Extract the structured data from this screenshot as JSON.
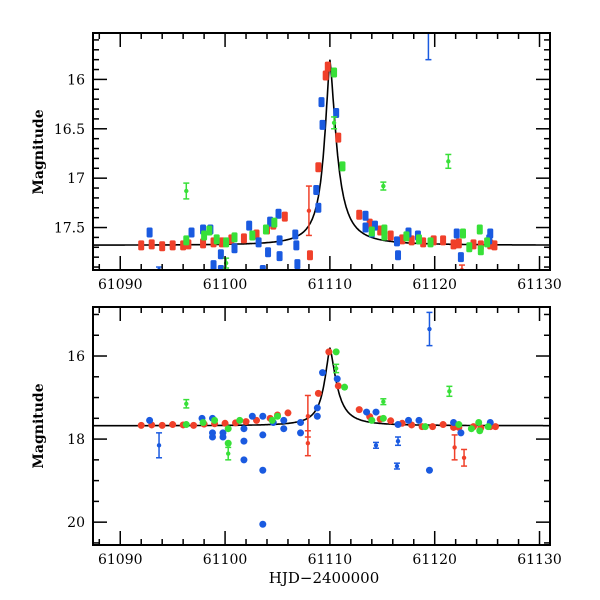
{
  "chart_data": [
    {
      "type": "scatter",
      "panel": "top",
      "title": "",
      "xlabel": "",
      "ylabel": "Magnitude",
      "xlim": [
        61087.4,
        61131.0
      ],
      "ylim": [
        17.93,
        15.53
      ],
      "y_inverted": true,
      "xticks": [
        61090,
        61100,
        61110,
        61120,
        61130
      ],
      "xtick_labels": [
        "61090",
        "61100",
        "61110",
        "61120",
        "61130"
      ],
      "yticks": [
        16,
        16.5,
        17,
        17.5
      ],
      "ytick_labels": [
        "16",
        "16.5",
        "17",
        "17.5"
      ],
      "grid": false,
      "model": {
        "name": "model",
        "color": "#000000",
        "baseline": 17.68,
        "peak_mag": 15.8,
        "peak_time": 61110.0,
        "rise_width": 1.1,
        "decay_width": 1.3
      },
      "series": [
        {
          "name": "red",
          "color": "#f0402a",
          "points": [
            {
              "x": 61092.0,
              "y": 17.68
            },
            {
              "x": 61093.0,
              "y": 17.67
            },
            {
              "x": 61094.0,
              "y": 17.69
            },
            {
              "x": 61095.0,
              "y": 17.68
            },
            {
              "x": 61096.0,
              "y": 17.68
            },
            {
              "x": 61096.5,
              "y": 17.67
            },
            {
              "x": 61097.9,
              "y": 17.66
            },
            {
              "x": 61098.9,
              "y": 17.65
            },
            {
              "x": 61099.7,
              "y": 17.65
            },
            {
              "x": 61100.6,
              "y": 17.62
            },
            {
              "x": 61101.8,
              "y": 17.61
            },
            {
              "x": 61103.0,
              "y": 17.57
            },
            {
              "x": 61104.0,
              "y": 17.52
            },
            {
              "x": 61104.6,
              "y": 17.47
            },
            {
              "x": 61105.7,
              "y": 17.39
            },
            {
              "x": 61108.0,
              "y": 17.33,
              "err": 0.25
            },
            {
              "x": 61108.1,
              "y": 17.78
            },
            {
              "x": 61108.9,
              "y": 16.89
            },
            {
              "x": 61109.6,
              "y": 15.96
            },
            {
              "x": 61109.8,
              "y": 15.87
            },
            {
              "x": 61110.8,
              "y": 16.59
            },
            {
              "x": 61112.8,
              "y": 17.37
            },
            {
              "x": 61113.8,
              "y": 17.46
            },
            {
              "x": 61114.8,
              "y": 17.53
            },
            {
              "x": 61115.8,
              "y": 17.58
            },
            {
              "x": 61116.9,
              "y": 17.62
            },
            {
              "x": 61117.8,
              "y": 17.63
            },
            {
              "x": 61118.9,
              "y": 17.65
            },
            {
              "x": 61119.9,
              "y": 17.63
            },
            {
              "x": 61120.8,
              "y": 17.63
            },
            {
              "x": 61121.8,
              "y": 17.67
            },
            {
              "x": 61122.3,
              "y": 17.66
            },
            {
              "x": 61122.6,
              "y": 17.93,
              "err": 0.05
            },
            {
              "x": 61123.7,
              "y": 17.67
            },
            {
              "x": 61124.4,
              "y": 17.68
            },
            {
              "x": 61125.3,
              "y": 17.67
            },
            {
              "x": 61125.7,
              "y": 17.68
            }
          ]
        },
        {
          "name": "blue",
          "color": "#1a5ae0",
          "points": [
            {
              "x": 61092.8,
              "y": 17.55
            },
            {
              "x": 61093.7,
              "y": 17.93,
              "err": 0.03
            },
            {
              "x": 61096.8,
              "y": 17.55
            },
            {
              "x": 61097.9,
              "y": 17.52
            },
            {
              "x": 61098.6,
              "y": 17.52
            },
            {
              "x": 61098.9,
              "y": 17.88
            },
            {
              "x": 61099.6,
              "y": 17.93
            },
            {
              "x": 61099.6,
              "y": 17.77
            },
            {
              "x": 61100.9,
              "y": 17.71
            },
            {
              "x": 61102.3,
              "y": 17.48
            },
            {
              "x": 61103.2,
              "y": 17.65
            },
            {
              "x": 61103.6,
              "y": 17.93
            },
            {
              "x": 61104.1,
              "y": 17.75
            },
            {
              "x": 61104.3,
              "y": 17.44
            },
            {
              "x": 61105.1,
              "y": 17.36
            },
            {
              "x": 61105.2,
              "y": 17.63
            },
            {
              "x": 61105.2,
              "y": 17.79
            },
            {
              "x": 61106.7,
              "y": 17.57
            },
            {
              "x": 61106.8,
              "y": 17.68
            },
            {
              "x": 61106.9,
              "y": 17.87
            },
            {
              "x": 61108.7,
              "y": 17.12
            },
            {
              "x": 61108.9,
              "y": 17.3
            },
            {
              "x": 61109.2,
              "y": 16.23
            },
            {
              "x": 61109.3,
              "y": 16.46
            },
            {
              "x": 61110.6,
              "y": 16.34
            },
            {
              "x": 61113.4,
              "y": 17.38
            },
            {
              "x": 61113.4,
              "y": 17.5
            },
            {
              "x": 61114.0,
              "y": 17.55
            },
            {
              "x": 61114.3,
              "y": 17.48
            },
            {
              "x": 61116.4,
              "y": 17.64
            },
            {
              "x": 61116.5,
              "y": 17.78
            },
            {
              "x": 61117.5,
              "y": 17.55
            },
            {
              "x": 61118.4,
              "y": 17.58
            },
            {
              "x": 61119.4,
              "y": 15.52,
              "err": 0.28
            },
            {
              "x": 61122.1,
              "y": 17.56
            },
            {
              "x": 61122.5,
              "y": 17.8
            },
            {
              "x": 61125.2,
              "y": 17.62
            },
            {
              "x": 61125.3,
              "y": 17.56
            }
          ]
        },
        {
          "name": "green",
          "color": "#38e038",
          "points": [
            {
              "x": 61096.3,
              "y": 17.13,
              "err": 0.08
            },
            {
              "x": 61096.3,
              "y": 17.63
            },
            {
              "x": 61098.0,
              "y": 17.58
            },
            {
              "x": 61098.5,
              "y": 17.53
            },
            {
              "x": 61099.2,
              "y": 17.62
            },
            {
              "x": 61100.1,
              "y": 17.65
            },
            {
              "x": 61100.1,
              "y": 17.86,
              "err": 0.05
            },
            {
              "x": 61100.9,
              "y": 17.6
            },
            {
              "x": 61102.6,
              "y": 17.58
            },
            {
              "x": 61103.9,
              "y": 17.52
            },
            {
              "x": 61104.7,
              "y": 17.45
            },
            {
              "x": 61110.4,
              "y": 15.93
            },
            {
              "x": 61110.4,
              "y": 16.44,
              "err": 0.06
            },
            {
              "x": 61111.2,
              "y": 16.88
            },
            {
              "x": 61114.0,
              "y": 17.54
            },
            {
              "x": 61115.1,
              "y": 17.08,
              "err": 0.04
            },
            {
              "x": 61115.2,
              "y": 17.52
            },
            {
              "x": 61115.2,
              "y": 17.58
            },
            {
              "x": 61117.3,
              "y": 17.59
            },
            {
              "x": 61118.5,
              "y": 17.62
            },
            {
              "x": 61119.6,
              "y": 17.65
            },
            {
              "x": 61121.3,
              "y": 16.83,
              "err": 0.07
            },
            {
              "x": 61122.7,
              "y": 17.56
            },
            {
              "x": 61123.3,
              "y": 17.7
            },
            {
              "x": 61124.3,
              "y": 17.52
            },
            {
              "x": 61124.4,
              "y": 17.73
            },
            {
              "x": 61125.0,
              "y": 17.65
            }
          ]
        }
      ]
    },
    {
      "type": "scatter",
      "panel": "bottom",
      "title": "",
      "xlabel": "HJD−2400000",
      "ylabel": "Magnitude",
      "xlim": [
        61087.4,
        61131.0
      ],
      "ylim": [
        20.55,
        14.82
      ],
      "y_inverted": true,
      "xticks": [
        61090,
        61100,
        61110,
        61120,
        61130
      ],
      "xtick_labels": [
        "61090",
        "61100",
        "61110",
        "61120",
        "61130"
      ],
      "yticks": [
        16,
        18,
        20
      ],
      "ytick_labels": [
        "16",
        "18",
        "20"
      ],
      "grid": false,
      "model": {
        "name": "model",
        "color": "#000000",
        "baseline": 17.68,
        "peak_mag": 15.8,
        "peak_time": 61110.0,
        "rise_width": 1.1,
        "decay_width": 1.3
      },
      "series": [
        {
          "name": "red",
          "color": "#f0402a",
          "points": [
            {
              "x": 61092.0,
              "y": 17.67
            },
            {
              "x": 61093.0,
              "y": 17.66
            },
            {
              "x": 61094.0,
              "y": 17.67
            },
            {
              "x": 61095.0,
              "y": 17.65
            },
            {
              "x": 61096.0,
              "y": 17.66
            },
            {
              "x": 61097.0,
              "y": 17.67
            },
            {
              "x": 61098.0,
              "y": 17.64
            },
            {
              "x": 61099.0,
              "y": 17.63
            },
            {
              "x": 61100.0,
              "y": 17.62
            },
            {
              "x": 61101.0,
              "y": 17.61
            },
            {
              "x": 61102.0,
              "y": 17.58
            },
            {
              "x": 61103.0,
              "y": 17.55
            },
            {
              "x": 61104.3,
              "y": 17.5
            },
            {
              "x": 61105.0,
              "y": 17.42
            },
            {
              "x": 61106.0,
              "y": 17.37
            },
            {
              "x": 61107.9,
              "y": 17.45,
              "err": 0.5
            },
            {
              "x": 61107.9,
              "y": 18.1,
              "err": 0.3
            },
            {
              "x": 61108.9,
              "y": 16.9
            },
            {
              "x": 61109.9,
              "y": 15.9
            },
            {
              "x": 61110.8,
              "y": 16.72
            },
            {
              "x": 61112.8,
              "y": 17.29
            },
            {
              "x": 61113.8,
              "y": 17.46
            },
            {
              "x": 61114.8,
              "y": 17.52
            },
            {
              "x": 61115.8,
              "y": 17.56
            },
            {
              "x": 61116.9,
              "y": 17.62
            },
            {
              "x": 61117.8,
              "y": 17.66
            },
            {
              "x": 61118.8,
              "y": 17.7
            },
            {
              "x": 61119.8,
              "y": 17.7
            },
            {
              "x": 61120.8,
              "y": 17.65
            },
            {
              "x": 61121.8,
              "y": 17.72
            },
            {
              "x": 61122.3,
              "y": 17.72
            },
            {
              "x": 61121.9,
              "y": 18.2,
              "err": 0.3
            },
            {
              "x": 61122.8,
              "y": 18.45,
              "err": 0.2
            },
            {
              "x": 61123.7,
              "y": 17.7
            },
            {
              "x": 61124.4,
              "y": 17.73
            },
            {
              "x": 61125.3,
              "y": 17.7
            },
            {
              "x": 61125.8,
              "y": 17.7
            }
          ]
        },
        {
          "name": "blue",
          "color": "#1a5ae0",
          "points": [
            {
              "x": 61092.8,
              "y": 17.55
            },
            {
              "x": 61093.7,
              "y": 18.15,
              "err": 0.3
            },
            {
              "x": 61097.8,
              "y": 17.5
            },
            {
              "x": 61098.8,
              "y": 17.5
            },
            {
              "x": 61098.8,
              "y": 17.85
            },
            {
              "x": 61098.8,
              "y": 17.95
            },
            {
              "x": 61099.8,
              "y": 17.95
            },
            {
              "x": 61099.8,
              "y": 17.85
            },
            {
              "x": 61101.8,
              "y": 17.75
            },
            {
              "x": 61101.8,
              "y": 18.05
            },
            {
              "x": 61101.8,
              "y": 18.5
            },
            {
              "x": 61102.6,
              "y": 17.45
            },
            {
              "x": 61103.6,
              "y": 17.45
            },
            {
              "x": 61103.6,
              "y": 17.9
            },
            {
              "x": 61103.6,
              "y": 18.75
            },
            {
              "x": 61103.6,
              "y": 20.05
            },
            {
              "x": 61104.6,
              "y": 17.6
            },
            {
              "x": 61105.6,
              "y": 17.55
            },
            {
              "x": 61105.6,
              "y": 17.75
            },
            {
              "x": 61107.2,
              "y": 17.6
            },
            {
              "x": 61107.2,
              "y": 17.85
            },
            {
              "x": 61108.8,
              "y": 17.45
            },
            {
              "x": 61108.8,
              "y": 17.25
            },
            {
              "x": 61109.3,
              "y": 16.4
            },
            {
              "x": 61110.7,
              "y": 16.55
            },
            {
              "x": 61113.5,
              "y": 17.35
            },
            {
              "x": 61114.4,
              "y": 17.35
            },
            {
              "x": 61114.4,
              "y": 18.15,
              "err": 0.07
            },
            {
              "x": 61116.5,
              "y": 17.65
            },
            {
              "x": 61116.5,
              "y": 18.05,
              "err": 0.1
            },
            {
              "x": 61116.4,
              "y": 18.65,
              "err": 0.07
            },
            {
              "x": 61117.5,
              "y": 17.55
            },
            {
              "x": 61118.5,
              "y": 17.55
            },
            {
              "x": 61119.5,
              "y": 15.35,
              "err": 0.4
            },
            {
              "x": 61119.5,
              "y": 18.75
            },
            {
              "x": 61121.8,
              "y": 17.6
            },
            {
              "x": 61122.5,
              "y": 17.85
            },
            {
              "x": 61125.3,
              "y": 17.6
            }
          ]
        },
        {
          "name": "green",
          "color": "#38e038",
          "points": [
            {
              "x": 61096.3,
              "y": 17.15,
              "err": 0.1
            },
            {
              "x": 61096.3,
              "y": 17.65
            },
            {
              "x": 61097.9,
              "y": 17.6
            },
            {
              "x": 61099.0,
              "y": 17.55
            },
            {
              "x": 61100.3,
              "y": 17.75
            },
            {
              "x": 61100.3,
              "y": 18.1
            },
            {
              "x": 61100.3,
              "y": 18.35,
              "err": 0.15
            },
            {
              "x": 61101.4,
              "y": 17.55
            },
            {
              "x": 61104.5,
              "y": 17.55
            },
            {
              "x": 61105.0,
              "y": 17.45
            },
            {
              "x": 61110.6,
              "y": 15.9
            },
            {
              "x": 61110.6,
              "y": 16.3,
              "err": 0.1
            },
            {
              "x": 61111.4,
              "y": 16.75
            },
            {
              "x": 61114.0,
              "y": 17.55
            },
            {
              "x": 61115.1,
              "y": 17.1,
              "err": 0.07
            },
            {
              "x": 61115.1,
              "y": 17.5
            },
            {
              "x": 61119.1,
              "y": 17.7
            },
            {
              "x": 61121.4,
              "y": 16.85,
              "err": 0.12
            },
            {
              "x": 61122.3,
              "y": 17.65
            },
            {
              "x": 61123.5,
              "y": 17.75
            },
            {
              "x": 61124.2,
              "y": 17.6
            },
            {
              "x": 61124.3,
              "y": 17.8
            },
            {
              "x": 61125.1,
              "y": 17.7
            }
          ]
        }
      ]
    }
  ]
}
